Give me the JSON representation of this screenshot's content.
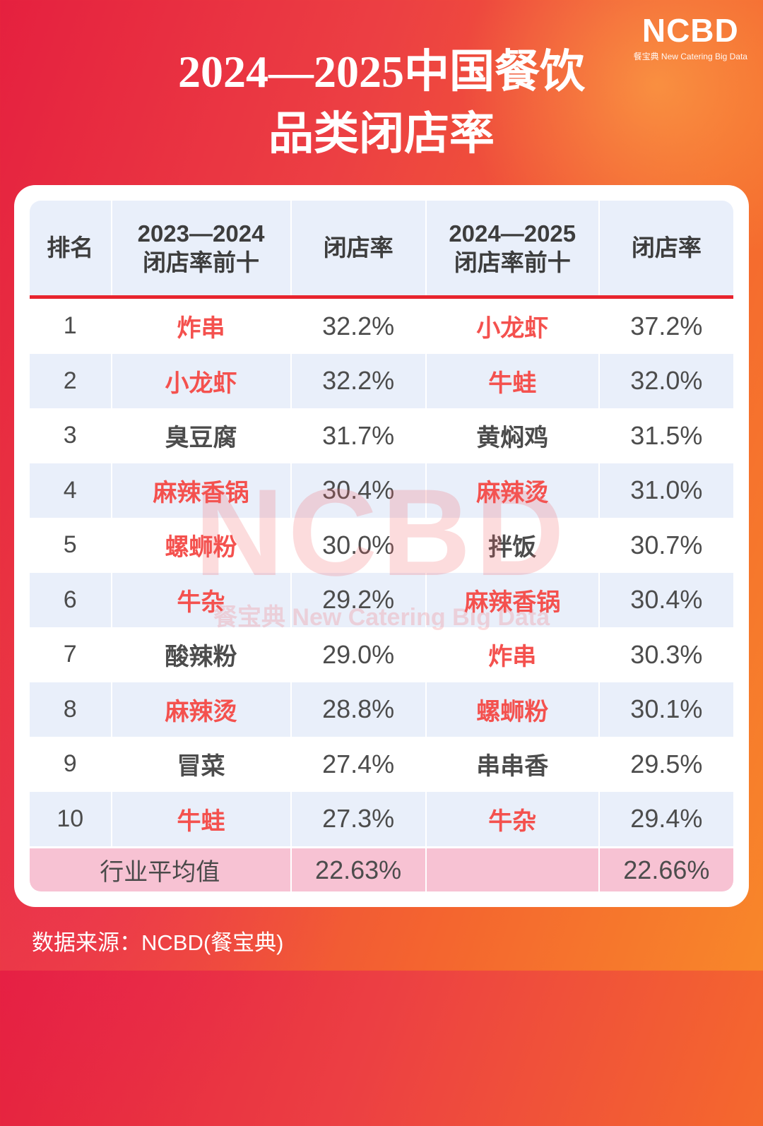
{
  "colors": {
    "bg_red": "#e5203f",
    "bg_orange": "#f8872a",
    "brand_red": "#e8242e",
    "highlight": "#f4514e",
    "text_dark": "#4c4c4c",
    "row_alt": "#e9effa",
    "avg_row": "#f7c2d3",
    "watermark": "rgba(240,95,100,0.22)"
  },
  "brand": {
    "name": "NCBD",
    "tagline": "餐宝典  New Catering Big Data"
  },
  "title": {
    "line1": "2024—2025中国餐饮",
    "line2": "品类闭店率"
  },
  "watermark": {
    "text": "NCBD",
    "subtext": "餐宝典 New Catering Big Data"
  },
  "footer": {
    "source": "数据来源：NCBD(餐宝典)"
  },
  "chart_data": {
    "type": "table",
    "title": "2024—2025中国餐饮品类闭店率",
    "columns": [
      "排名",
      "2023—2024闭店率前十",
      "闭店率",
      "2024—2025闭店率前十",
      "闭店率"
    ],
    "header": {
      "rank": "排名",
      "c2023_line1": "2023—2024",
      "c2023_line2": "闭店率前十",
      "rate_2023": "闭店率",
      "c2024_line1": "2024—2025",
      "c2024_line2": "闭店率前十",
      "rate_2024": "闭店率"
    },
    "rows": [
      {
        "rank": "1",
        "cat_2023": {
          "text": "炸串",
          "red": true
        },
        "rate_2023": "32.2%",
        "cat_2024": {
          "text": "小龙虾",
          "red": true
        },
        "rate_2024": "37.2%"
      },
      {
        "rank": "2",
        "cat_2023": {
          "text": "小龙虾",
          "red": true
        },
        "rate_2023": "32.2%",
        "cat_2024": {
          "text": "牛蛙",
          "red": true
        },
        "rate_2024": "32.0%"
      },
      {
        "rank": "3",
        "cat_2023": {
          "text": "臭豆腐",
          "red": false
        },
        "rate_2023": "31.7%",
        "cat_2024": {
          "text": "黄焖鸡",
          "red": false
        },
        "rate_2024": "31.5%"
      },
      {
        "rank": "4",
        "cat_2023": {
          "text": "麻辣香锅",
          "red": true
        },
        "rate_2023": "30.4%",
        "cat_2024": {
          "text": "麻辣烫",
          "red": true
        },
        "rate_2024": "31.0%"
      },
      {
        "rank": "5",
        "cat_2023": {
          "text": "螺蛳粉",
          "red": true
        },
        "rate_2023": "30.0%",
        "cat_2024": {
          "text": "拌饭",
          "red": false
        },
        "rate_2024": "30.7%"
      },
      {
        "rank": "6",
        "cat_2023": {
          "text": "牛杂",
          "red": true
        },
        "rate_2023": "29.2%",
        "cat_2024": {
          "text": "麻辣香锅",
          "red": true
        },
        "rate_2024": "30.4%"
      },
      {
        "rank": "7",
        "cat_2023": {
          "text": "酸辣粉",
          "red": false
        },
        "rate_2023": "29.0%",
        "cat_2024": {
          "text": "炸串",
          "red": true
        },
        "rate_2024": "30.3%"
      },
      {
        "rank": "8",
        "cat_2023": {
          "text": "麻辣烫",
          "red": true
        },
        "rate_2023": "28.8%",
        "cat_2024": {
          "text": "螺蛳粉",
          "red": true
        },
        "rate_2024": "30.1%"
      },
      {
        "rank": "9",
        "cat_2023": {
          "text": "冒菜",
          "red": false
        },
        "rate_2023": "27.4%",
        "cat_2024": {
          "text": "串串香",
          "red": false
        },
        "rate_2024": "29.5%"
      },
      {
        "rank": "10",
        "cat_2023": {
          "text": "牛蛙",
          "red": true
        },
        "rate_2023": "27.3%",
        "cat_2024": {
          "text": "牛杂",
          "red": true
        },
        "rate_2024": "29.4%"
      }
    ],
    "average": {
      "label": "行业平均值",
      "rate_2023": "22.63%",
      "rate_2024": "22.66%"
    }
  }
}
